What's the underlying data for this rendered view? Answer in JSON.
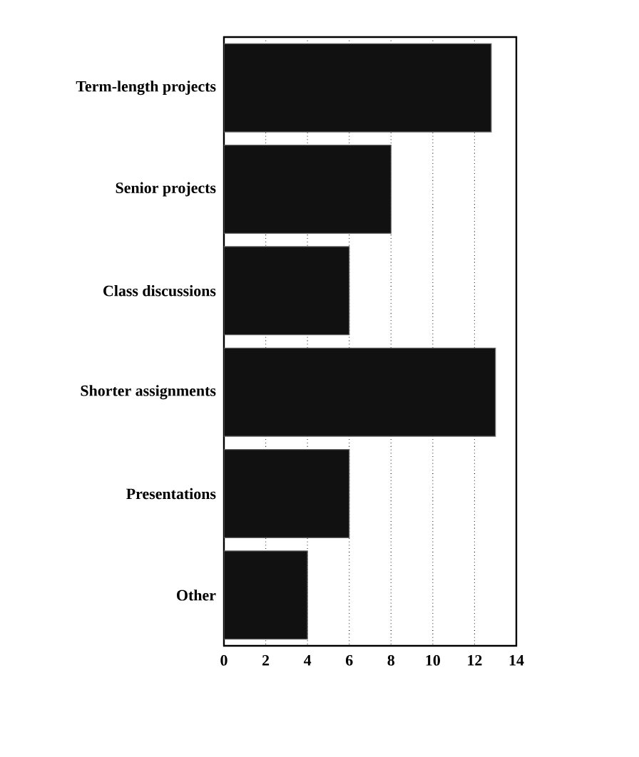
{
  "chart_data": {
    "type": "bar",
    "orientation": "horizontal",
    "categories": [
      "Term-length projects",
      "Senior projects",
      "Class discussions",
      "Shorter assignments",
      "Presentations",
      "Other"
    ],
    "values": [
      12.8,
      8,
      6,
      13,
      6,
      4
    ],
    "color": "#111111",
    "xlim": [
      0,
      14
    ],
    "xticks": [
      0,
      2,
      4,
      6,
      8,
      10,
      12,
      14
    ],
    "grid": "x"
  }
}
